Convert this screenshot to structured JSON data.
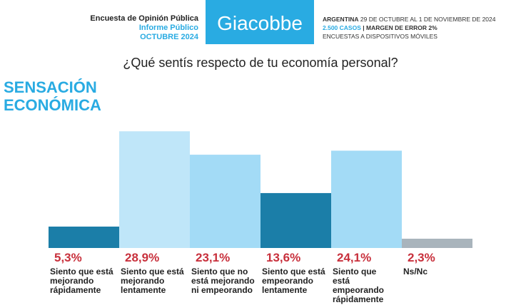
{
  "header": {
    "left": [
      "Encuesta de Opinión Pública",
      "Informe Público",
      "OCTUBRE 2024"
    ],
    "brand": "Giacobbe",
    "right": {
      "line1_bold": "ARGENTINA",
      "line1": "29 DE OCTUBRE AL 1 DE NOVIEMBRE DE 2024",
      "line2_bold": "2.500 CASOS",
      "line2": "| MARGEN DE ERROR 2%",
      "line3": "ENCUESTAS A DISPOSITIVOS MÓVILES"
    }
  },
  "chart_data": {
    "type": "bar",
    "title": "¿Qué sentís respecto de tu economía personal?",
    "subtitle": [
      "SENSACIÓN",
      "ECONÓMICA"
    ],
    "categories": [
      "Siento que está mejorando rápidamente",
      "Siento que está mejorando lentamente",
      "Siento que no está mejorando ni empeorando",
      "Siento que está empeorando lentamente",
      "Siento que está empeorando rápidamente",
      "Ns/Nc"
    ],
    "values": [
      5.3,
      28.9,
      23.1,
      13.6,
      24.1,
      2.3
    ],
    "value_labels": [
      "5,3%",
      "28,9%",
      "23,1%",
      "13,6%",
      "24,1%",
      "2,3%"
    ],
    "colors": [
      "#1b7ea8",
      "#bfe6f9",
      "#a3dbf6",
      "#1b7ea8",
      "#a3dbf6",
      "#a9b4bc"
    ],
    "ylim": [
      0,
      30
    ]
  }
}
